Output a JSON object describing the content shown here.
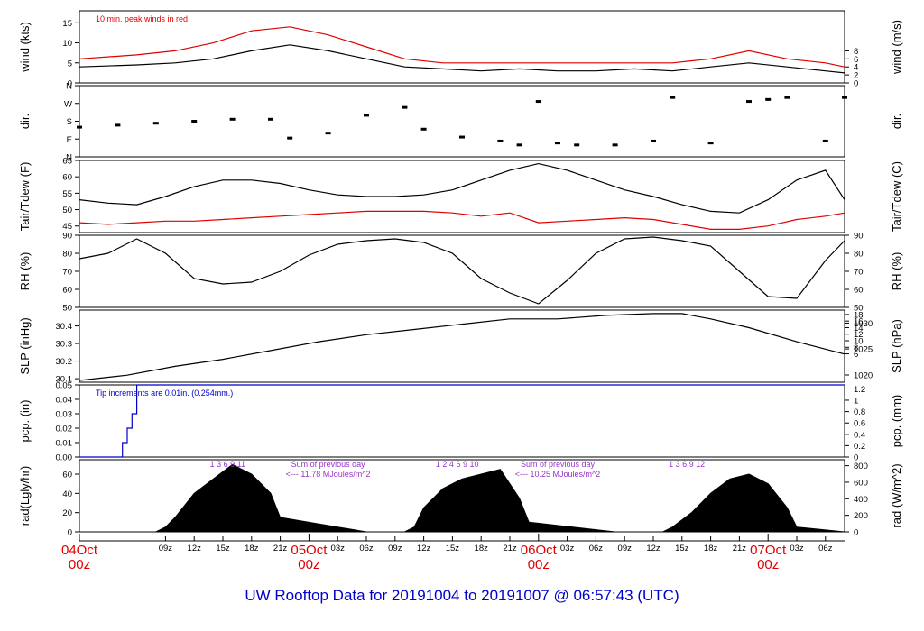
{
  "title": "UW Rooftop Data for 20191004  to  20191007 @ 06:57:43  (UTC)",
  "colors": {
    "trace": "#000000",
    "alt": "#e00000",
    "pcp": "#0000cc",
    "note": "#9933cc",
    "date": "#e00000",
    "title": "#0000cc"
  },
  "chart_data": [
    {
      "type": "line",
      "ylabel": "wind (kts)",
      "ylabel_right": "wind (m/s)",
      "ylim": [
        0,
        18
      ],
      "yticks": [
        0,
        5,
        10,
        15
      ],
      "yticks_right": [
        "0",
        "2",
        "4",
        "6",
        "8"
      ],
      "yticks_right_values": [
        0,
        2,
        4,
        6,
        8
      ],
      "right_scale": 1.944,
      "annotation": "10 min. peak winds in red",
      "series": [
        {
          "color": "#000000",
          "x": [
            0,
            6,
            10,
            14,
            18,
            22,
            26,
            30,
            34,
            38,
            42,
            46,
            50,
            54,
            58,
            62,
            66,
            70,
            74,
            78,
            80
          ],
          "values": [
            4,
            4.5,
            5,
            6,
            8,
            9.5,
            8,
            6,
            4,
            3.5,
            3,
            3.5,
            3,
            3,
            3.5,
            3,
            4,
            5,
            4,
            3,
            2.5
          ]
        },
        {
          "color": "#e00000",
          "x": [
            0,
            6,
            10,
            14,
            18,
            22,
            26,
            30,
            34,
            38,
            42,
            46,
            50,
            54,
            58,
            62,
            66,
            70,
            74,
            78,
            80
          ],
          "values": [
            6,
            7,
            8,
            10,
            13,
            14,
            12,
            9,
            6,
            5,
            5,
            5,
            5,
            5,
            5,
            5,
            6,
            8,
            6,
            5,
            4
          ]
        }
      ]
    },
    {
      "type": "scatter",
      "ylabel": "dir.",
      "ylabel_right": "dir.",
      "ylim": [
        0,
        360
      ],
      "yticks": [
        "N",
        "E",
        "S",
        "W",
        "N"
      ],
      "ytick_values": [
        0,
        90,
        180,
        270,
        360
      ],
      "series": [
        {
          "color": "#000000",
          "x": [
            0,
            4,
            8,
            12,
            16,
            20,
            22,
            26,
            30,
            34,
            36,
            40,
            44,
            46,
            48,
            50,
            52,
            56,
            60,
            62,
            66,
            70,
            72,
            74,
            78,
            80
          ],
          "values": [
            150,
            160,
            170,
            180,
            190,
            190,
            95,
            120,
            210,
            250,
            140,
            100,
            80,
            60,
            280,
            70,
            60,
            60,
            80,
            300,
            70,
            280,
            290,
            300,
            80,
            300
          ]
        }
      ]
    },
    {
      "type": "line",
      "ylabel": "Tair/Tdew (F)",
      "ylabel_right": "Tair/Tdew (C)",
      "ylim": [
        43,
        65
      ],
      "yticks": [
        45,
        50,
        55,
        60,
        65
      ],
      "yticks_right": [
        "6",
        "8",
        "10",
        "12",
        "14",
        "16",
        "18"
      ],
      "yticks_right_values": [
        6,
        8,
        10,
        12,
        14,
        16,
        18
      ],
      "series": [
        {
          "color": "#000000",
          "x": [
            0,
            3,
            6,
            9,
            12,
            15,
            18,
            21,
            24,
            27,
            30,
            33,
            36,
            39,
            42,
            45,
            48,
            51,
            54,
            57,
            60,
            63,
            66,
            69,
            72,
            75,
            78,
            80
          ],
          "values": [
            53,
            52,
            51.5,
            54,
            57,
            59,
            59,
            58,
            56,
            54.5,
            54,
            54,
            54.5,
            56,
            59,
            62,
            64,
            62,
            59,
            56,
            54,
            51.5,
            49.5,
            49,
            53,
            59,
            62,
            53
          ]
        },
        {
          "color": "#e00000",
          "x": [
            0,
            3,
            6,
            9,
            12,
            15,
            18,
            21,
            24,
            27,
            30,
            33,
            36,
            39,
            42,
            45,
            48,
            51,
            54,
            57,
            60,
            63,
            66,
            69,
            72,
            75,
            78,
            80
          ],
          "values": [
            46,
            45.5,
            46,
            46.5,
            46.5,
            47,
            47.5,
            48,
            48.5,
            49,
            49.5,
            49.5,
            49.5,
            49,
            48,
            49,
            46,
            46.5,
            47,
            47.5,
            47,
            45.5,
            44,
            44,
            45,
            47,
            48,
            49
          ]
        }
      ]
    },
    {
      "type": "line",
      "ylabel": "RH (%)",
      "ylabel_right": "RH (%)",
      "ylim": [
        50,
        90
      ],
      "yticks": [
        50,
        60,
        70,
        80,
        90
      ],
      "yticks_right": [
        "50",
        "60",
        "70",
        "80",
        "90"
      ],
      "yticks_right_values": [
        50,
        60,
        70,
        80,
        90
      ],
      "series": [
        {
          "color": "#000000",
          "x": [
            0,
            3,
            6,
            9,
            12,
            15,
            18,
            21,
            24,
            27,
            30,
            33,
            36,
            39,
            42,
            45,
            48,
            51,
            54,
            57,
            60,
            63,
            66,
            69,
            72,
            75,
            78,
            80
          ],
          "values": [
            77,
            80,
            88,
            80,
            66,
            63,
            64,
            70,
            79,
            85,
            87,
            88,
            86,
            80,
            66,
            58,
            52,
            65,
            80,
            88,
            89,
            87,
            84,
            70,
            56,
            55,
            76,
            87
          ]
        }
      ]
    },
    {
      "type": "line",
      "ylabel": "SLP (inHg)",
      "ylabel_right": "SLP (hPa)",
      "ylim": [
        30.08,
        30.49
      ],
      "yticks": [
        "30.1",
        "30.2",
        "30.3",
        "30.4"
      ],
      "ytick_values": [
        30.1,
        30.2,
        30.3,
        30.4
      ],
      "yticks_right": [
        "1020",
        "1025",
        "1030"
      ],
      "yticks_right_values": [
        30.121,
        30.269,
        30.416
      ],
      "series": [
        {
          "color": "#000000",
          "x": [
            0,
            5,
            10,
            15,
            20,
            25,
            30,
            35,
            40,
            45,
            50,
            55,
            60,
            63,
            66,
            70,
            75,
            80
          ],
          "values": [
            30.09,
            30.12,
            30.17,
            30.21,
            30.26,
            30.31,
            30.35,
            30.38,
            30.41,
            30.44,
            30.44,
            30.46,
            30.47,
            30.47,
            30.44,
            30.39,
            30.31,
            30.24
          ]
        }
      ]
    },
    {
      "type": "line",
      "ylabel": "pcp. (in)",
      "ylabel_right": "pcp. (mm)",
      "ylim": [
        0,
        0.05
      ],
      "yticks": [
        "0.00",
        "0.01",
        "0.02",
        "0.03",
        "0.04",
        "0.05"
      ],
      "ytick_values": [
        0,
        0.01,
        0.02,
        0.03,
        0.04,
        0.05
      ],
      "yticks_right": [
        "0",
        "0.2",
        "0.4",
        "0.6",
        "0.8",
        "1",
        "1.2"
      ],
      "yticks_right_values": [
        0,
        0.0079,
        0.0157,
        0.0236,
        0.0315,
        0.0394,
        0.0472
      ],
      "annotation": "Tip increments are 0.01in. (0.254mm.)",
      "series": [
        {
          "color": "#0000cc",
          "x": [
            0,
            4.5,
            4.5,
            5,
            5,
            5.5,
            5.5,
            6,
            6,
            80
          ],
          "values": [
            0,
            0,
            0.01,
            0.01,
            0.02,
            0.02,
            0.03,
            0.03,
            0.05,
            0.05
          ]
        }
      ]
    },
    {
      "type": "area",
      "ylabel": "rad(Lgly/hr)",
      "ylabel_right": "rad (W/m^2)",
      "ylim": [
        0,
        75
      ],
      "yticks": [
        0,
        20,
        40,
        60
      ],
      "yticks_right": [
        "0",
        "200",
        "400",
        "600",
        "800"
      ],
      "yticks_right_values": [
        0,
        17.2,
        34.4,
        51.6,
        68.8
      ],
      "series": [
        {
          "color": "#000000",
          "x": [
            0,
            8,
            9,
            10,
            12,
            14,
            16,
            18,
            20,
            21,
            30,
            34,
            35,
            36,
            38,
            40,
            42,
            44,
            46,
            47,
            56,
            61,
            62,
            64,
            66,
            68,
            70,
            72,
            74,
            75,
            80
          ],
          "values": [
            0,
            0,
            5,
            15,
            40,
            55,
            70,
            60,
            40,
            15,
            0,
            0,
            5,
            25,
            45,
            55,
            60,
            65,
            35,
            10,
            0,
            0,
            5,
            20,
            40,
            55,
            60,
            50,
            25,
            5,
            0
          ]
        }
      ],
      "annotations": [
        {
          "hours": "1  3  6  9  11",
          "text": "Sum of previous day",
          "sub": "<--- 11.78 MJoules/m^2"
        },
        {
          "hours": "1  2  4  6  9  10",
          "text": "Sum of previous day",
          "sub": "<--- 10.25 MJoules/m^2"
        },
        {
          "hours": "1  3  6  9  12"
        }
      ]
    }
  ],
  "x_axis": {
    "range_hours": [
      0,
      80
    ],
    "ticks": [
      {
        "t": 9,
        "label": "09z"
      },
      {
        "t": 12,
        "label": "12z"
      },
      {
        "t": 15,
        "label": "15z"
      },
      {
        "t": 18,
        "label": "18z"
      },
      {
        "t": 21,
        "label": "21z"
      },
      {
        "t": 27,
        "label": "03z"
      },
      {
        "t": 30,
        "label": "06z"
      },
      {
        "t": 33,
        "label": "09z"
      },
      {
        "t": 36,
        "label": "12z"
      },
      {
        "t": 39,
        "label": "15z"
      },
      {
        "t": 42,
        "label": "18z"
      },
      {
        "t": 45,
        "label": "21z"
      },
      {
        "t": 51,
        "label": "03z"
      },
      {
        "t": 54,
        "label": "06z"
      },
      {
        "t": 57,
        "label": "09z"
      },
      {
        "t": 60,
        "label": "12z"
      },
      {
        "t": 63,
        "label": "15z"
      },
      {
        "t": 66,
        "label": "18z"
      },
      {
        "t": 69,
        "label": "21z"
      },
      {
        "t": 75,
        "label": "03z"
      },
      {
        "t": 78,
        "label": "06z"
      }
    ],
    "dates": [
      {
        "t": 0,
        "date": "04Oct",
        "hour": "00z"
      },
      {
        "t": 24,
        "date": "05Oct",
        "hour": "00z"
      },
      {
        "t": 48,
        "date": "06Oct",
        "hour": "00z"
      },
      {
        "t": 72,
        "date": "07Oct",
        "hour": "00z"
      }
    ]
  }
}
